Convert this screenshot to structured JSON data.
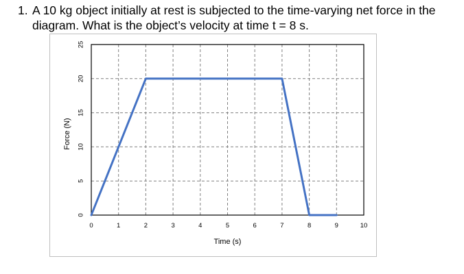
{
  "question": {
    "number": "1.",
    "line1": "A 10 kg object initially at rest is subjected to the time-varying net force in the",
    "line2": "diagram.  What is the object’s velocity at time t = 8 s."
  },
  "chart_data": {
    "type": "line",
    "title": "",
    "xlabel": "Time (s)",
    "ylabel": "Force (N)",
    "xlim": [
      0,
      10
    ],
    "ylim": [
      0,
      25
    ],
    "xticks": [
      0,
      1,
      2,
      3,
      4,
      5,
      6,
      7,
      8,
      9,
      10
    ],
    "yticks": [
      0,
      5,
      10,
      15,
      20,
      25
    ],
    "grid": "dashed",
    "series": [
      {
        "x": [
          0,
          2,
          7,
          8,
          9
        ],
        "y": [
          0,
          20,
          20,
          0,
          0
        ],
        "color": "#4472c4"
      }
    ]
  }
}
